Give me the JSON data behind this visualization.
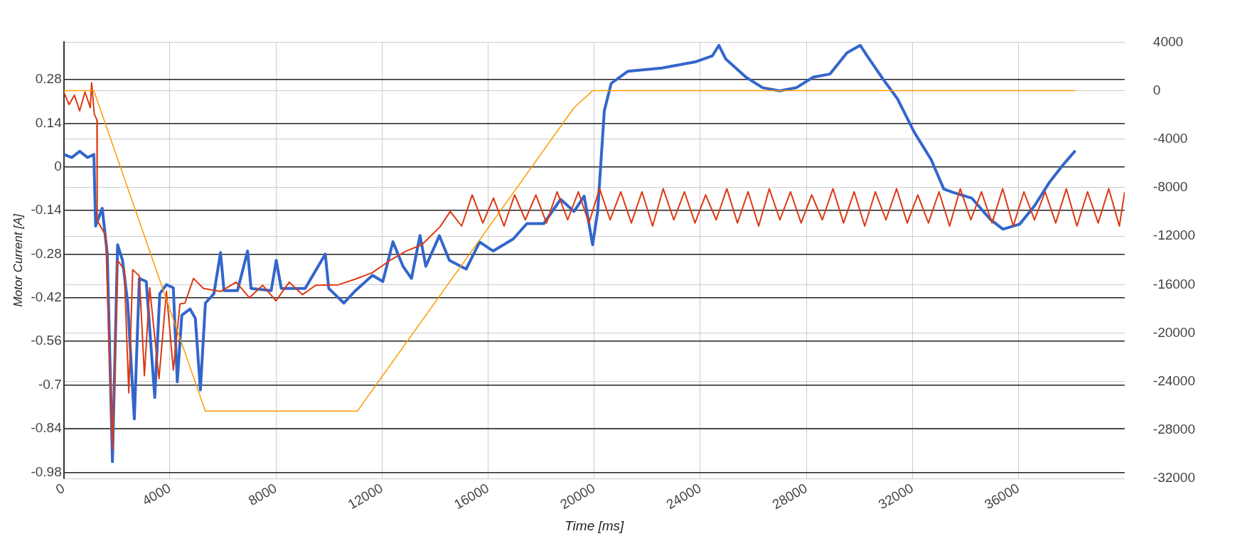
{
  "chart_data": {
    "type": "line",
    "xlabel": "Time [ms]",
    "ylabel": "Motor Current [A]",
    "xlim": [
      0,
      40000
    ],
    "xticks": [
      0,
      4000,
      8000,
      12000,
      16000,
      20000,
      24000,
      28000,
      32000,
      36000
    ],
    "ylim": [
      -1.0,
      0.4
    ],
    "yticks": [
      0.28,
      0.14,
      0,
      -0.14,
      -0.28,
      -0.42,
      -0.56,
      -0.7,
      -0.84,
      -0.98
    ],
    "y2lim": [
      -32000,
      4000
    ],
    "y2ticks": [
      4000,
      0,
      -4000,
      -8000,
      -12000,
      -16000,
      -20000,
      -24000,
      -28000,
      -32000
    ],
    "grid": true,
    "legend": false,
    "marker": "none",
    "line_style": "solid",
    "series": [
      {
        "color": "#3366cc",
        "x": [
          0,
          300,
          600,
          900,
          1134,
          1200,
          1450,
          1640,
          1835,
          2030,
          2215,
          2410,
          2660,
          2850,
          3110,
          3430,
          3620,
          3870,
          4130,
          4280,
          4450,
          4760,
          4960,
          5150,
          5340,
          5660,
          5910,
          6040,
          6550,
          6930,
          7060,
          7820,
          8010,
          8200,
          9100,
          9860,
          9990,
          10560,
          11000,
          11640,
          12030,
          12410,
          12790,
          13110,
          13430,
          13650,
          14160,
          14540,
          15170,
          15680,
          16190,
          16950,
          17460,
          18100,
          18730,
          19240,
          19620,
          19940,
          20130,
          20380,
          20640,
          21270,
          22540,
          23810,
          24450,
          24700,
          24960,
          25720,
          26350,
          26990,
          27620,
          28260,
          28890,
          29530,
          30030,
          30290,
          30920,
          31430,
          32060,
          32700,
          33180,
          33530,
          34230,
          34930,
          35410,
          36040,
          36600,
          37160,
          37650,
          38140
        ],
        "values": [
          0.04,
          0.03,
          0.05,
          0.03,
          0.04,
          -0.19,
          -0.133,
          -0.28,
          -0.946,
          -0.25,
          -0.3,
          -0.437,
          -0.809,
          -0.358,
          -0.368,
          -0.74,
          -0.407,
          -0.378,
          -0.388,
          -0.69,
          -0.476,
          -0.456,
          -0.486,
          -0.716,
          -0.437,
          -0.407,
          -0.275,
          -0.397,
          -0.397,
          -0.27,
          -0.39,
          -0.397,
          -0.3,
          -0.39,
          -0.39,
          -0.28,
          -0.39,
          -0.437,
          -0.397,
          -0.348,
          -0.368,
          -0.24,
          -0.319,
          -0.358,
          -0.22,
          -0.319,
          -0.221,
          -0.3,
          -0.328,
          -0.241,
          -0.27,
          -0.231,
          -0.182,
          -0.182,
          -0.104,
          -0.143,
          -0.094,
          -0.25,
          -0.143,
          0.18,
          0.268,
          0.307,
          0.317,
          0.337,
          0.356,
          0.39,
          0.346,
          0.288,
          0.254,
          0.244,
          0.254,
          0.288,
          0.298,
          0.366,
          0.39,
          0.356,
          0.278,
          0.219,
          0.112,
          0.024,
          -0.071,
          -0.082,
          -0.1,
          -0.168,
          -0.2,
          -0.184,
          -0.125,
          -0.05,
          0.004,
          0.052
        ]
      },
      {
        "color": "#dc3912",
        "x": [
          0,
          200,
          400,
          600,
          800,
          1000,
          1050,
          1150,
          1250,
          1260,
          1580,
          1835,
          2030,
          2280,
          2450,
          2600,
          2850,
          3040,
          3240,
          3590,
          3870,
          4130,
          4380,
          4570,
          4890,
          5270,
          5910,
          6500,
          7000,
          7500,
          8000,
          8500,
          9000,
          9500,
          10370,
          11000,
          11640,
          12300,
          12910,
          13500,
          14190,
          14570,
          15000,
          15400,
          15800,
          16200,
          16600,
          17000,
          17400,
          17800,
          18200,
          18600,
          19000,
          19400,
          19800,
          20200,
          20600,
          21000,
          21400,
          21800,
          22200,
          22600,
          23000,
          23400,
          23800,
          24200,
          24600,
          25000,
          25400,
          25800,
          26200,
          26600,
          27000,
          27400,
          27800,
          28200,
          28600,
          29000,
          29400,
          29800,
          30200,
          30600,
          31000,
          31400,
          31800,
          32200,
          32600,
          33000,
          33400,
          33800,
          34200,
          34600,
          35000,
          35400,
          35800,
          36200,
          36600,
          37000,
          37400,
          37800,
          38200,
          38600,
          39000,
          39400,
          39800,
          40000
        ],
        "values": [
          0.24,
          0.2,
          0.23,
          0.18,
          0.24,
          0.19,
          0.27,
          0.17,
          0.15,
          -0.172,
          -0.22,
          -0.906,
          -0.3,
          -0.33,
          -0.725,
          -0.33,
          -0.35,
          -0.67,
          -0.388,
          -0.68,
          -0.4,
          -0.652,
          -0.44,
          -0.437,
          -0.358,
          -0.39,
          -0.4,
          -0.37,
          -0.42,
          -0.38,
          -0.43,
          -0.37,
          -0.41,
          -0.38,
          -0.378,
          -0.36,
          -0.339,
          -0.3,
          -0.27,
          -0.25,
          -0.192,
          -0.143,
          -0.19,
          -0.09,
          -0.18,
          -0.1,
          -0.19,
          -0.09,
          -0.17,
          -0.09,
          -0.18,
          -0.08,
          -0.17,
          -0.08,
          -0.18,
          -0.07,
          -0.17,
          -0.08,
          -0.18,
          -0.08,
          -0.19,
          -0.07,
          -0.17,
          -0.08,
          -0.18,
          -0.09,
          -0.17,
          -0.07,
          -0.18,
          -0.08,
          -0.19,
          -0.07,
          -0.17,
          -0.08,
          -0.18,
          -0.09,
          -0.17,
          -0.07,
          -0.18,
          -0.08,
          -0.19,
          -0.08,
          -0.17,
          -0.07,
          -0.18,
          -0.09,
          -0.18,
          -0.08,
          -0.19,
          -0.07,
          -0.17,
          -0.08,
          -0.18,
          -0.07,
          -0.19,
          -0.08,
          -0.17,
          -0.08,
          -0.18,
          -0.07,
          -0.19,
          -0.08,
          -0.18,
          -0.07,
          -0.19,
          -0.08
        ]
      },
      {
        "color": "#ff9900",
        "axis": "y2",
        "x": [
          0,
          1134,
          5337,
          11070,
          19240,
          19940,
          38140
        ],
        "values": [
          0,
          0,
          -26440,
          -26440,
          -1400,
          0,
          0
        ]
      }
    ]
  }
}
